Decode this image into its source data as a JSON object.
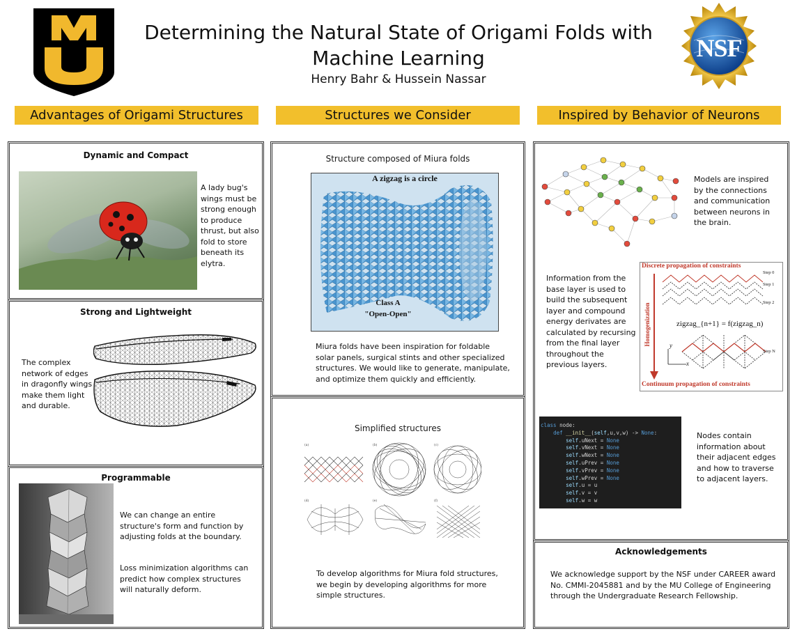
{
  "header": {
    "title": "Determining the Natural State of Origami Folds with Machine Learning",
    "authors": "Henry Bahr & Hussein Nassar",
    "left_logo_text": "MU",
    "right_logo_text": "NSF"
  },
  "colors": {
    "header_gold": "#f2bf2c",
    "mu_gold": "#f1b82d",
    "mu_black": "#000000",
    "nsf_blue": "#1c5aa6"
  },
  "columns": {
    "col1_title": "Advantages of Origami Structures",
    "col2_title": "Structures we Consider",
    "col3_title": "Inspired by Behavior of Neurons"
  },
  "col1": {
    "box1_title": "Dynamic and Compact",
    "box1_text": "A lady bug's wings must be strong enough to produce thrust, but also fold to store beneath its elytra.",
    "box2_title": "Strong and Lightweight",
    "box2_text": "The complex network of edges in dragonfly wings make them light and durable.",
    "box3_title": "Programmable",
    "box3_text1": "We can change an entire structure's form and function by adjusting folds at the boundary.",
    "box3_text2": "Loss minimization algorithms can predict how complex structures will naturally deform."
  },
  "col2": {
    "box1_title": "Structure composed of Miura folds",
    "figure1_caption_top": "A zigzag is a circle",
    "figure1_caption_bottom_1": "Class A",
    "figure1_caption_bottom_2": "\"Open-Open\"",
    "box1_text": "Miura folds have been inspiration for foldable solar panels, surgical stints and other specialized structures. We would like to generate, manipulate, and optimize them quickly and efficiently.",
    "box2_title": "Simplified structures",
    "figure2_labels": [
      "(a)",
      "(b)",
      "(c)",
      "(d)",
      "(e)",
      "(f)"
    ],
    "box2_text": "To develop algorithms for Miura fold structures, we begin by developing algorithms for more simple structures."
  },
  "col3": {
    "neuron_text": "Models are inspired by the connections and communication between neurons in the brain.",
    "info_text": "Information from the base layer is used to build the subsequent layer and compound energy derivates are calculated by recursing from the final layer throughout the previous layers.",
    "diagram": {
      "top_label": "Discrete propagation of constraints",
      "bottom_label": "Continuum propagation of constraints",
      "side_label": "Homogenization",
      "equation": "zigzag_{n+1} = f(zigzag_n)",
      "steps": [
        "Step 0",
        "Step 1",
        "Step 2",
        "Step N"
      ],
      "axis_y": "y",
      "axis_x": "x"
    },
    "code_lines": [
      "class node:",
      "    def __init__(self,u,v,w) -> None:",
      "        self.uNext = None",
      "        self.vNext = None",
      "        self.wNext = None",
      "        self.uPrev = None",
      "        self.vPrev = None",
      "        self.wPrev = None",
      "        self.u = u",
      "        self.v = v",
      "        self.w = w"
    ],
    "nodes_text": "Nodes contain information about their adjacent edges and how to traverse to adjacent layers.",
    "ack_title": "Acknowledgements",
    "ack_text": "We acknowledge support by the NSF under CAREER award No. CMMI-2045881 and by the MU College of Engineering through the Undergraduate Research Fellowship."
  }
}
